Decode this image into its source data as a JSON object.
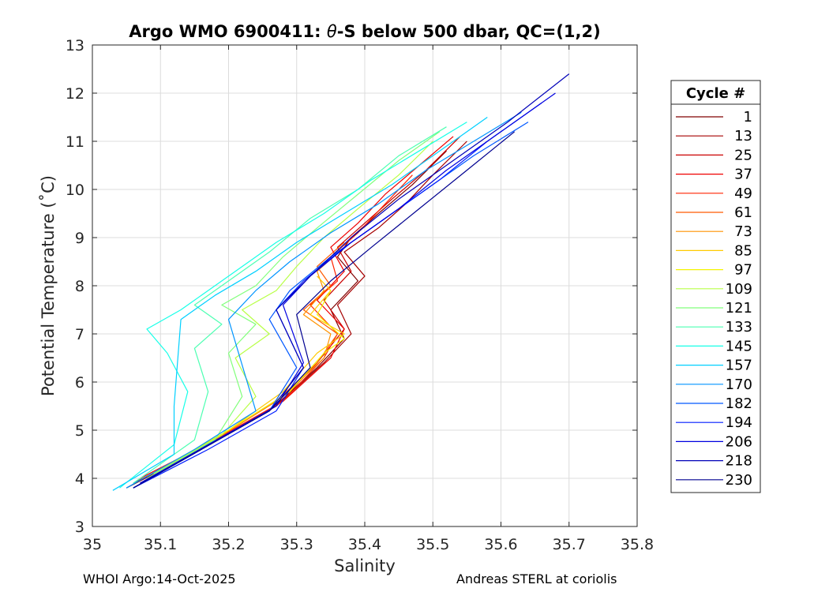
{
  "footer": {
    "left": "WHOI Argo:14-Oct-2025",
    "right": "Andreas STERL at coriolis"
  },
  "chart_data": {
    "type": "line",
    "title": "Argo WMO 6900411: θ-S below 500 dbar,  QC=(1,2)",
    "title_prefix": "Argo WMO 6900411: ",
    "title_theta": "θ",
    "title_suffix": "-S below 500 dbar,  QC=(1,2)",
    "xlabel": "Salinity",
    "ylabel": "Potential Temperature (˚C)",
    "xlim": [
      35.0,
      35.8
    ],
    "ylim": [
      3,
      13
    ],
    "xticks": [
      35,
      35.1,
      35.2,
      35.3,
      35.4,
      35.5,
      35.6,
      35.7,
      35.8
    ],
    "xtick_labels": [
      "35",
      "35.1",
      "35.2",
      "35.3",
      "35.4",
      "35.5",
      "35.6",
      "35.7",
      "35.8"
    ],
    "yticks": [
      3,
      4,
      5,
      6,
      7,
      8,
      9,
      10,
      11,
      12,
      13
    ],
    "ytick_labels": [
      "3",
      "4",
      "5",
      "6",
      "7",
      "8",
      "9",
      "10",
      "11",
      "12",
      "13"
    ],
    "grid": true,
    "legend": {
      "title": "Cycle #",
      "placement": "right-outside",
      "entries": [
        {
          "label": "1",
          "color": "#800000"
        },
        {
          "label": "13",
          "color": "#a50000"
        },
        {
          "label": "25",
          "color": "#ca0000"
        },
        {
          "label": "37",
          "color": "#ef0000"
        },
        {
          "label": "49",
          "color": "#ff2200"
        },
        {
          "label": "61",
          "color": "#ff5a00"
        },
        {
          "label": "73",
          "color": "#ff9200"
        },
        {
          "label": "85",
          "color": "#ffca00"
        },
        {
          "label": "97",
          "color": "#f4f400"
        },
        {
          "label": "109",
          "color": "#b8ff46"
        },
        {
          "label": "121",
          "color": "#82ff7c"
        },
        {
          "label": "133",
          "color": "#4dffb2"
        },
        {
          "label": "145",
          "color": "#17ffe8"
        },
        {
          "label": "157",
          "color": "#00d0ff"
        },
        {
          "label": "170",
          "color": "#0094ff"
        },
        {
          "label": "182",
          "color": "#0058ff"
        },
        {
          "label": "194",
          "color": "#001cff"
        },
        {
          "label": "206",
          "color": "#0000e0"
        },
        {
          "label": "218",
          "color": "#0000b8"
        },
        {
          "label": "230",
          "color": "#000090"
        }
      ]
    },
    "series": [
      {
        "name": "1",
        "color": "#800000",
        "s": [
          35.05,
          35.16,
          35.26,
          35.33,
          35.37,
          35.35,
          35.39,
          35.36,
          35.38,
          35.42,
          35.47,
          35.52
        ],
        "t": [
          3.8,
          4.6,
          5.4,
          6.3,
          6.9,
          7.5,
          8.1,
          8.6,
          9.0,
          9.5,
          10.1,
          10.8
        ]
      },
      {
        "name": "13",
        "color": "#a50000",
        "s": [
          35.06,
          35.17,
          35.27,
          35.34,
          35.38,
          35.36,
          35.4,
          35.37,
          35.42,
          35.46,
          35.5,
          35.55
        ],
        "t": [
          3.9,
          4.7,
          5.5,
          6.4,
          7.0,
          7.6,
          8.2,
          8.7,
          9.2,
          9.7,
          10.3,
          11.0
        ]
      },
      {
        "name": "25",
        "color": "#ca0000",
        "s": [
          35.07,
          35.17,
          35.27,
          35.33,
          35.37,
          35.34,
          35.38,
          35.36,
          35.4,
          35.44,
          35.49,
          35.54
        ],
        "t": [
          3.9,
          4.7,
          5.5,
          6.4,
          7.1,
          7.7,
          8.3,
          8.8,
          9.3,
          9.8,
          10.4,
          11.1
        ]
      },
      {
        "name": "37",
        "color": "#ef0000",
        "s": [
          35.07,
          35.18,
          35.28,
          35.35,
          35.37,
          35.33,
          35.37,
          35.35,
          35.39,
          35.43,
          35.48,
          35.53
        ],
        "t": [
          4.0,
          4.8,
          5.6,
          6.5,
          7.1,
          7.7,
          8.3,
          8.8,
          9.3,
          9.9,
          10.5,
          11.1
        ]
      },
      {
        "name": "49",
        "color": "#ff2200",
        "s": [
          35.08,
          35.18,
          35.28,
          35.34,
          35.36,
          35.32,
          35.36,
          35.35,
          35.39,
          35.43,
          35.47
        ],
        "t": [
          4.0,
          4.8,
          5.6,
          6.5,
          7.0,
          7.6,
          8.1,
          8.6,
          9.1,
          9.7,
          10.3
        ]
      },
      {
        "name": "61",
        "color": "#ff5a00",
        "s": [
          35.08,
          35.18,
          35.27,
          35.33,
          35.36,
          35.31,
          35.35,
          35.33,
          35.37
        ],
        "t": [
          4.0,
          4.8,
          5.6,
          6.4,
          7.0,
          7.5,
          8.0,
          8.4,
          8.9
        ]
      },
      {
        "name": "73",
        "color": "#ff9200",
        "s": [
          35.09,
          35.19,
          35.28,
          35.34,
          35.35,
          35.31,
          35.34,
          35.33,
          35.37
        ],
        "t": [
          4.1,
          4.9,
          5.7,
          6.5,
          7.0,
          7.4,
          7.9,
          8.3,
          8.8
        ]
      },
      {
        "name": "85",
        "color": "#ffca00",
        "s": [
          35.09,
          35.19,
          35.28,
          35.33,
          35.37,
          35.32,
          35.35,
          35.33
        ],
        "t": [
          4.1,
          4.9,
          5.8,
          6.6,
          7.0,
          7.4,
          7.9,
          8.2
        ]
      },
      {
        "name": "97",
        "color": "#f4f400",
        "s": [
          35.1,
          35.2,
          35.29,
          35.34,
          35.37,
          35.33,
          35.35
        ],
        "t": [
          4.2,
          5.0,
          5.8,
          6.6,
          6.9,
          7.4,
          7.9
        ]
      },
      {
        "name": "109",
        "color": "#b8ff46",
        "s": [
          35.09,
          35.19,
          35.24,
          35.21,
          35.26,
          35.22,
          35.27,
          35.3,
          35.34,
          35.39,
          35.45,
          35.5
        ],
        "t": [
          4.1,
          4.9,
          5.7,
          6.5,
          7.0,
          7.5,
          7.9,
          8.4,
          9.0,
          9.6,
          10.3,
          11.0
        ]
      },
      {
        "name": "121",
        "color": "#82ff7c",
        "s": [
          35.08,
          35.18,
          35.22,
          35.2,
          35.24,
          35.19,
          35.24,
          35.28,
          35.33,
          35.39,
          35.45,
          35.51
        ],
        "t": [
          4.0,
          4.8,
          5.7,
          6.6,
          7.2,
          7.6,
          8.0,
          8.6,
          9.2,
          9.9,
          10.6,
          11.2
        ]
      },
      {
        "name": "133",
        "color": "#4dffb2",
        "s": [
          35.06,
          35.15,
          35.17,
          35.15,
          35.19,
          35.15,
          35.2,
          35.26,
          35.32,
          35.39,
          35.45,
          35.52
        ],
        "t": [
          3.9,
          4.8,
          5.8,
          6.7,
          7.2,
          7.6,
          8.1,
          8.7,
          9.4,
          10.0,
          10.7,
          11.3
        ]
      },
      {
        "name": "145",
        "color": "#17ffe8",
        "s": [
          35.04,
          35.12,
          35.14,
          35.11,
          35.08,
          35.13,
          35.17,
          35.21,
          35.27,
          35.34,
          35.41,
          35.48,
          35.55
        ],
        "t": [
          3.8,
          4.7,
          5.8,
          6.6,
          7.1,
          7.5,
          7.9,
          8.3,
          8.9,
          9.5,
          10.2,
          10.8,
          11.4
        ]
      },
      {
        "name": "157",
        "color": "#00d0ff",
        "s": [
          35.03,
          35.12,
          35.12,
          35.13,
          35.18,
          35.24,
          35.3,
          35.37,
          35.44,
          35.51,
          35.58
        ],
        "t": [
          3.75,
          4.5,
          5.5,
          7.3,
          7.8,
          8.3,
          8.9,
          9.5,
          10.1,
          10.8,
          11.5
        ]
      },
      {
        "name": "170",
        "color": "#0094ff",
        "s": [
          35.05,
          35.15,
          35.24,
          35.2,
          35.24,
          35.29,
          35.35,
          35.42,
          35.49,
          35.56,
          35.63
        ],
        "t": [
          3.8,
          4.6,
          5.4,
          7.3,
          7.9,
          8.5,
          9.1,
          9.7,
          10.4,
          11.0,
          11.6
        ]
      },
      {
        "name": "182",
        "color": "#0058ff",
        "s": [
          35.06,
          35.16,
          35.26,
          35.3,
          35.26,
          35.29,
          35.35,
          35.42,
          35.49,
          35.56,
          35.64
        ],
        "t": [
          3.8,
          4.6,
          5.4,
          6.3,
          7.3,
          7.9,
          8.6,
          9.3,
          10.0,
          10.7,
          11.4
        ]
      },
      {
        "name": "194",
        "color": "#001cff",
        "s": [
          35.06,
          35.17,
          35.27,
          35.31,
          35.27,
          35.31,
          35.37,
          35.44,
          35.51,
          35.58,
          35.66
        ],
        "t": [
          3.8,
          4.6,
          5.4,
          6.3,
          7.5,
          8.1,
          8.8,
          9.5,
          10.2,
          11.0,
          11.8
        ]
      },
      {
        "name": "206",
        "color": "#0000e0",
        "s": [
          35.07,
          35.17,
          35.27,
          35.31,
          35.28,
          35.32,
          35.38,
          35.45,
          35.52,
          35.6,
          35.68
        ],
        "t": [
          3.9,
          4.7,
          5.5,
          6.4,
          7.6,
          8.2,
          8.9,
          9.6,
          10.4,
          11.2,
          12.0
        ]
      },
      {
        "name": "218",
        "color": "#0000b8",
        "s": [
          35.06,
          35.16,
          35.26,
          35.31,
          35.27,
          35.32,
          35.38,
          35.45,
          35.53,
          35.61,
          35.7
        ],
        "t": [
          3.8,
          4.6,
          5.4,
          6.3,
          7.5,
          8.2,
          9.0,
          9.8,
          10.6,
          11.4,
          12.4
        ]
      },
      {
        "name": "230",
        "color": "#000090",
        "s": [
          35.06,
          35.16,
          35.26,
          35.32,
          35.3,
          35.35,
          35.41,
          35.48,
          35.55,
          35.62
        ],
        "t": [
          3.8,
          4.6,
          5.4,
          6.3,
          7.4,
          8.1,
          8.8,
          9.6,
          10.4,
          11.2
        ]
      }
    ]
  }
}
